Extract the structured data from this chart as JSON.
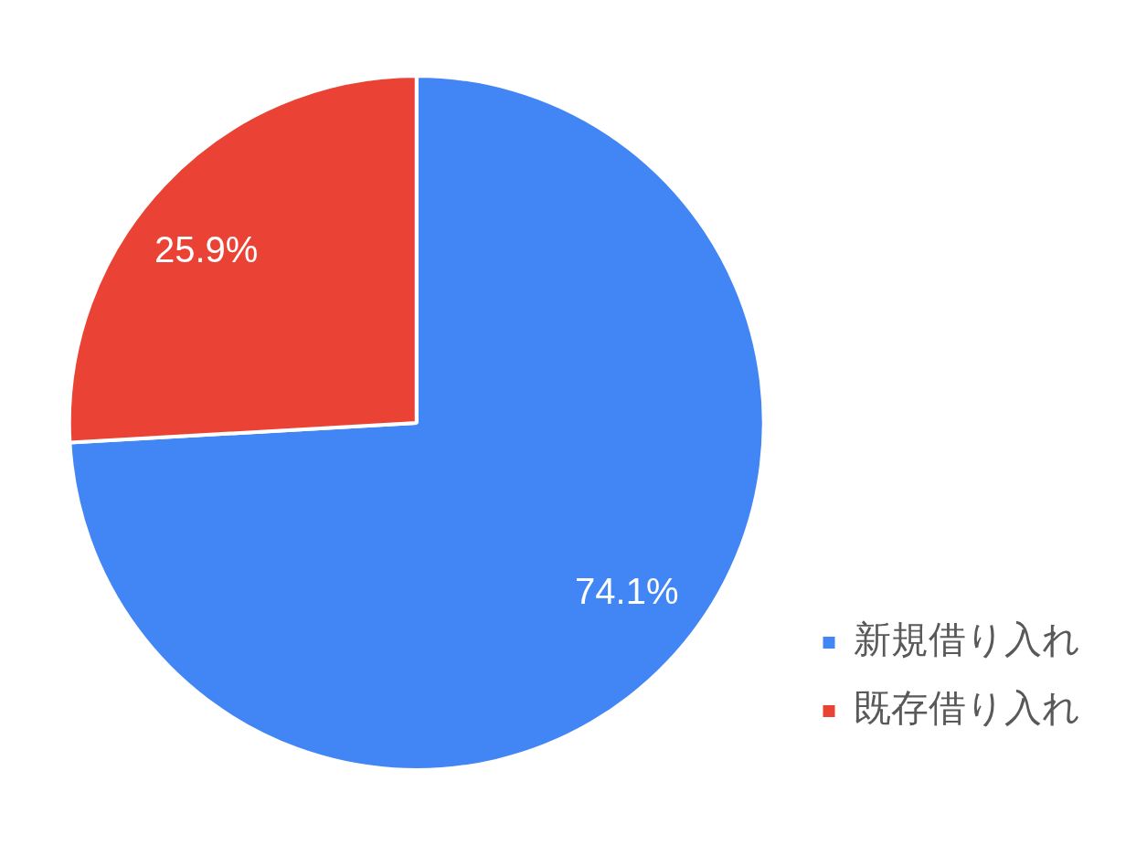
{
  "chart_data": {
    "type": "pie",
    "categories": [
      "新規借り入れ",
      "既存借り入れ"
    ],
    "values": [
      74.1,
      25.9
    ],
    "colors": [
      "#4285f4",
      "#ea4335"
    ],
    "value_labels": [
      "74.1%",
      "25.9%"
    ],
    "legend": "right"
  }
}
